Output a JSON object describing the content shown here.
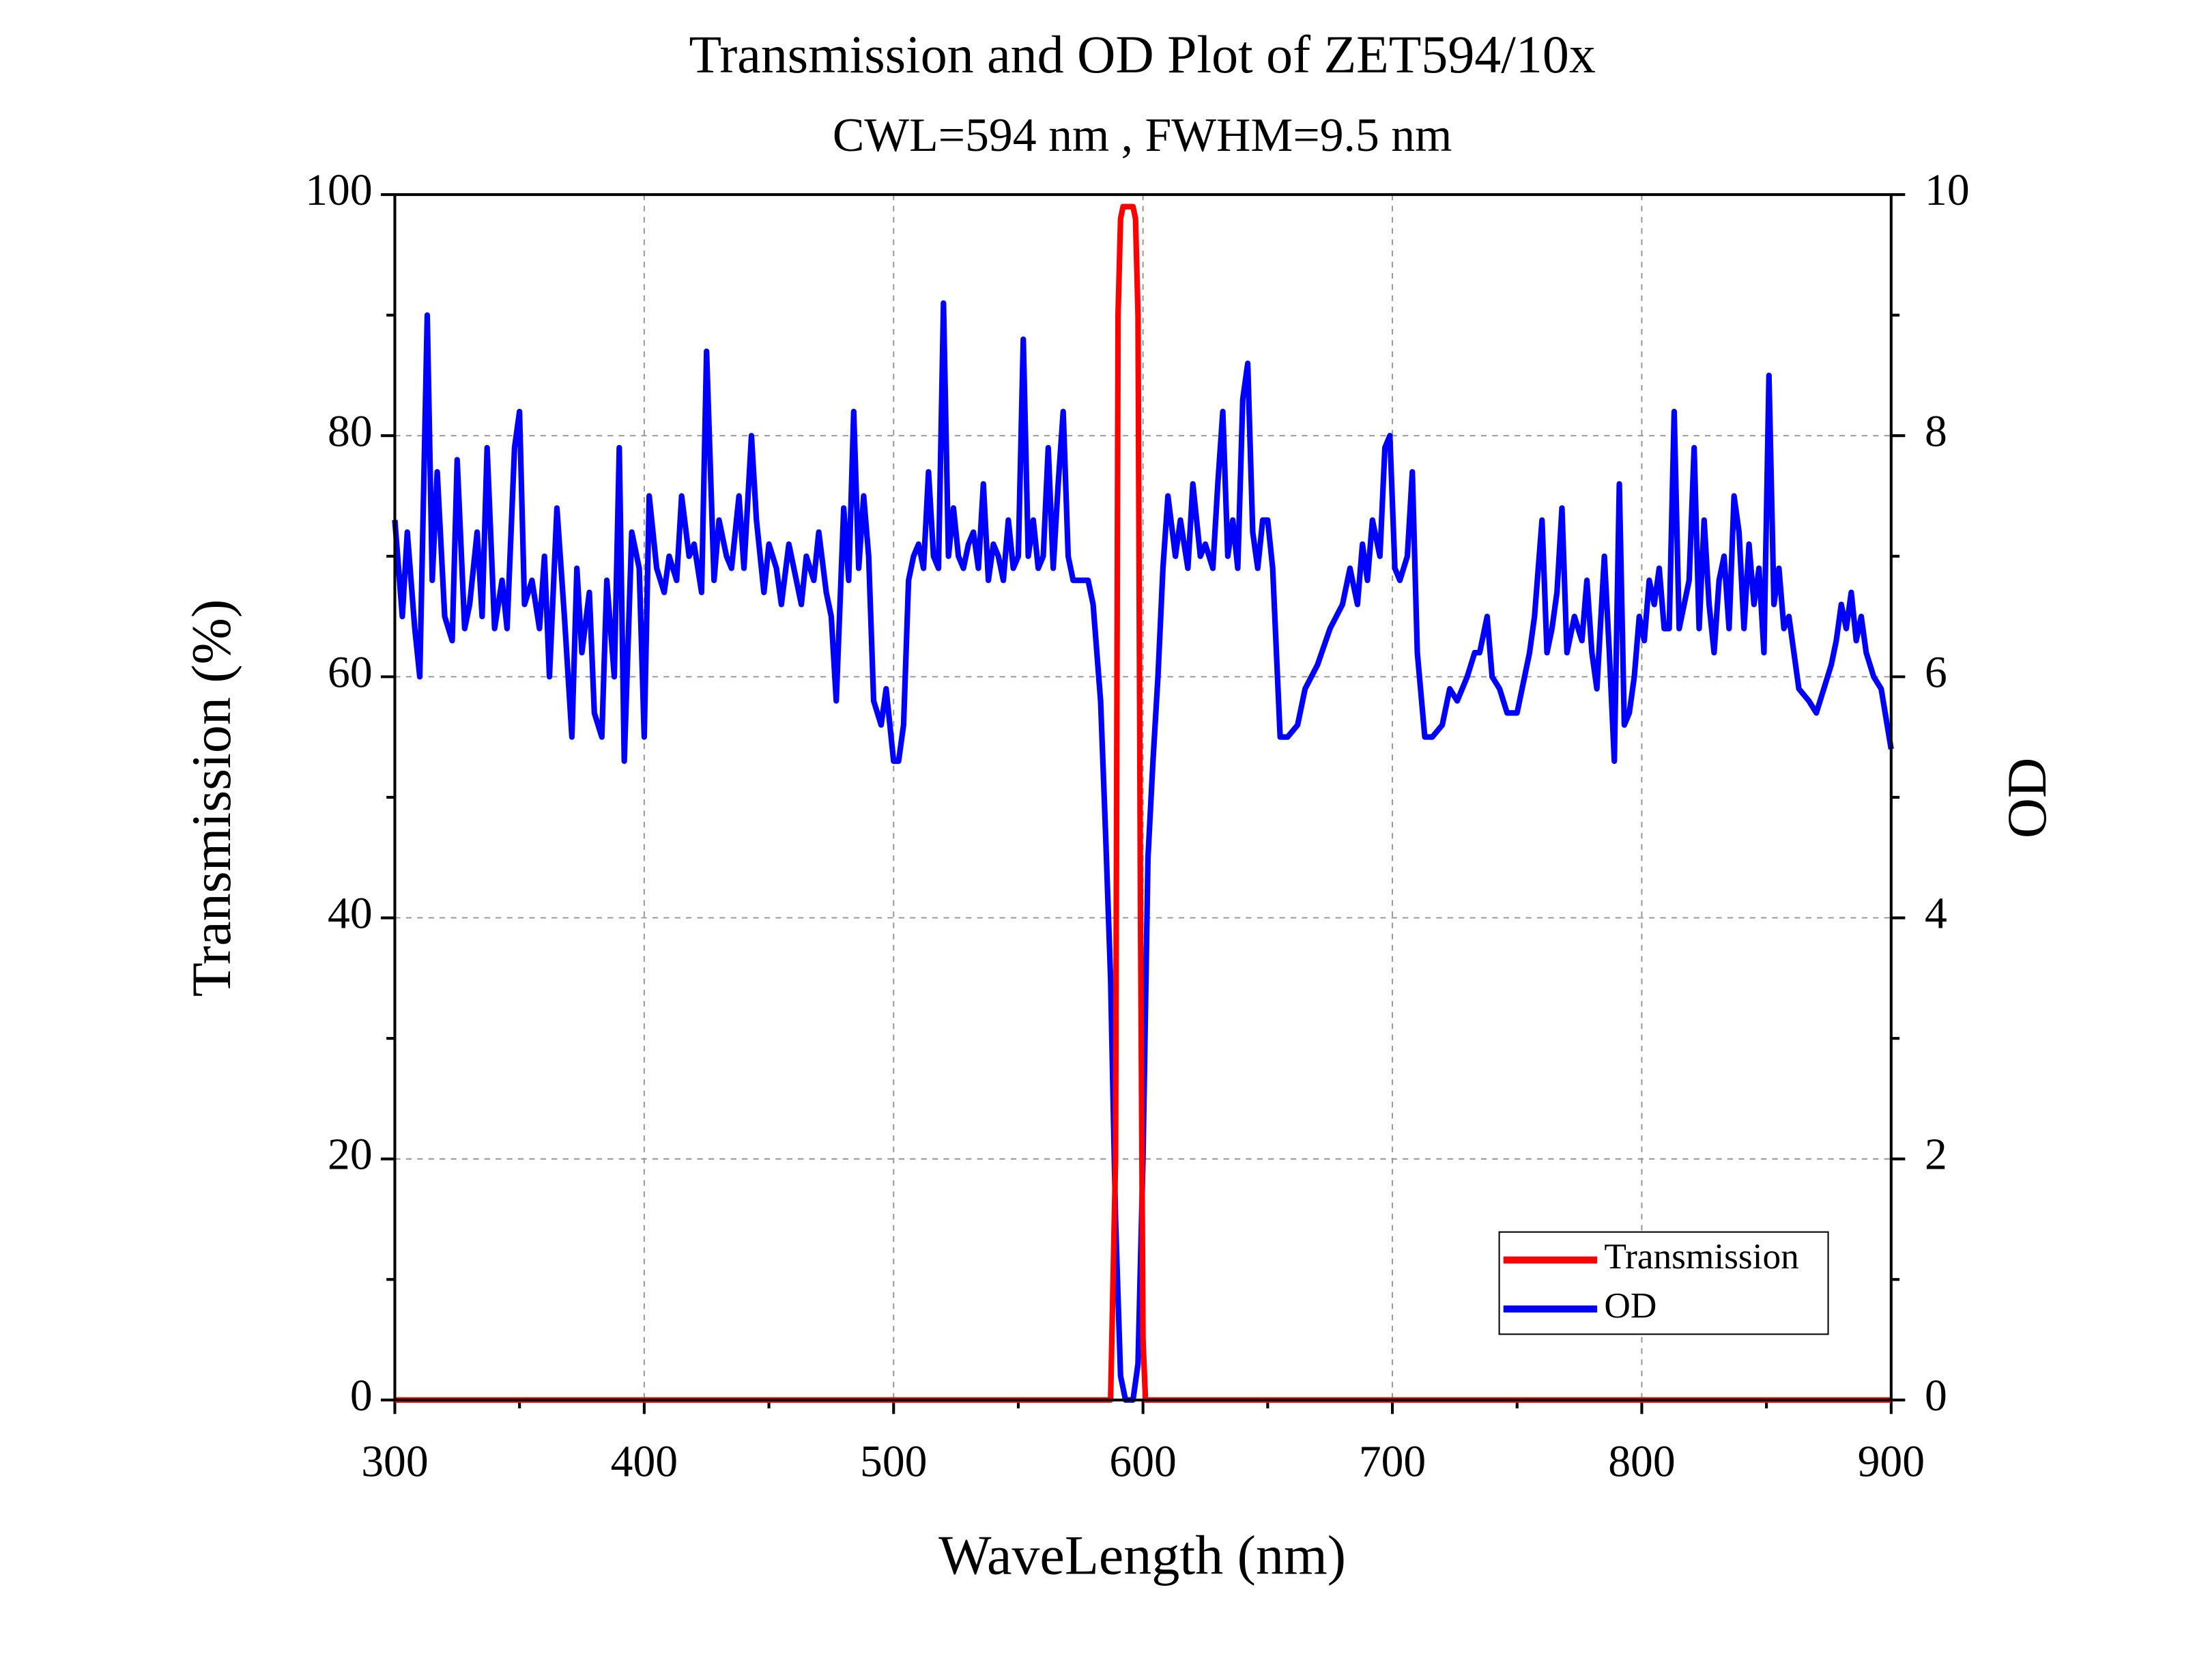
{
  "chart_data": {
    "type": "line",
    "title": "Transmission and OD Plot of ZET594/10x",
    "subtitle": "CWL=594 nm , FWHM=9.5 nm",
    "x_label": "WaveLength (nm)",
    "y_label": "Transmission (%)",
    "y2_label": "OD",
    "xlim": [
      300,
      900
    ],
    "xticks": [
      300,
      400,
      500,
      600,
      700,
      800,
      900
    ],
    "ylim": [
      0,
      100
    ],
    "yticks": [
      0,
      20,
      40,
      60,
      80,
      100
    ],
    "y2lim": [
      0,
      10
    ],
    "y2ticks": [
      0,
      2,
      4,
      6,
      8,
      10
    ],
    "grid": true,
    "legend": "lower right",
    "series": [
      {
        "name": "Transmission",
        "color": "#ff0000",
        "x": [
          300,
          587,
          589,
          590,
          591,
          592,
          594,
          596,
          597,
          598,
          599,
          600,
          601,
          900
        ],
        "values": [
          0,
          0,
          20,
          90,
          98,
          99,
          99,
          99,
          98,
          90,
          40,
          5,
          0,
          0
        ]
      },
      {
        "name": "OD",
        "color": "#0000ff",
        "axis": "y2",
        "x": [
          300,
          303,
          305,
          308,
          310,
          313,
          315,
          317,
          320,
          323,
          325,
          328,
          330,
          333,
          335,
          337,
          340,
          343,
          345,
          348,
          350,
          352,
          355,
          358,
          360,
          362,
          365,
          368,
          371,
          373,
          375,
          378,
          380,
          383,
          385,
          388,
          390,
          392,
          395,
          398,
          400,
          402,
          405,
          408,
          410,
          413,
          415,
          418,
          420,
          423,
          425,
          428,
          430,
          433,
          435,
          438,
          440,
          443,
          445,
          448,
          450,
          453,
          455,
          458,
          460,
          463,
          465,
          468,
          470,
          473,
          475,
          477,
          480,
          482,
          484,
          486,
          488,
          490,
          492,
          495,
          497,
          500,
          502,
          504,
          506,
          508,
          510,
          512,
          514,
          516,
          518,
          520,
          522,
          524,
          526,
          528,
          530,
          532,
          534,
          536,
          538,
          540,
          542,
          544,
          546,
          548,
          550,
          552,
          554,
          556,
          558,
          560,
          562,
          564,
          566,
          568,
          570,
          572,
          575,
          578,
          580,
          583,
          585,
          587,
          589,
          591,
          593,
          596,
          598,
          600,
          602,
          604,
          606,
          608,
          610,
          613,
          615,
          618,
          620,
          623,
          625,
          628,
          630,
          632,
          634,
          636,
          638,
          640,
          642,
          644,
          646,
          648,
          650,
          652,
          655,
          658,
          662,
          665,
          670,
          675,
          680,
          683,
          686,
          688,
          690,
          692,
          695,
          697,
          699,
          701,
          703,
          706,
          708,
          710,
          713,
          716,
          720,
          723,
          726,
          730,
          733,
          735,
          738,
          740,
          743,
          746,
          750,
          753,
          755,
          757,
          760,
          762,
          764,
          766,
          768,
          770,
          773,
          776,
          778,
          780,
          782,
          785,
          787,
          789,
          791,
          793,
          795,
          797,
          799,
          801,
          803,
          805,
          807,
          809,
          811,
          813,
          815,
          817,
          819,
          821,
          823,
          825,
          827,
          829,
          831,
          833,
          835,
          837,
          839,
          841,
          843,
          845,
          847,
          849,
          851,
          853,
          855,
          857,
          859,
          861,
          863,
          867,
          870,
          873,
          876,
          878,
          880,
          882,
          884,
          886,
          888,
          890,
          893,
          896,
          900
        ],
        "values": [
          7.3,
          6.5,
          7.2,
          6.4,
          6.0,
          9.0,
          6.8,
          7.7,
          6.5,
          6.3,
          7.8,
          6.4,
          6.6,
          7.2,
          6.5,
          7.9,
          6.4,
          6.8,
          6.4,
          7.9,
          8.2,
          6.6,
          6.8,
          6.4,
          7.0,
          6.0,
          7.4,
          6.5,
          5.5,
          6.9,
          6.2,
          6.7,
          5.7,
          5.5,
          6.8,
          6.0,
          7.9,
          5.3,
          7.2,
          6.9,
          5.5,
          7.5,
          6.9,
          6.7,
          7.0,
          6.8,
          7.5,
          7.0,
          7.1,
          6.7,
          8.7,
          6.8,
          7.3,
          7.0,
          6.9,
          7.5,
          6.9,
          8.0,
          7.3,
          6.7,
          7.1,
          6.9,
          6.6,
          7.1,
          6.9,
          6.6,
          7.0,
          6.8,
          7.2,
          6.7,
          6.5,
          5.8,
          7.4,
          6.8,
          8.2,
          6.9,
          7.5,
          7.0,
          5.8,
          5.6,
          5.9,
          5.3,
          5.3,
          5.6,
          6.8,
          7.0,
          7.1,
          6.9,
          7.7,
          7.0,
          6.9,
          9.1,
          7.0,
          7.4,
          7.0,
          6.9,
          7.1,
          7.2,
          6.9,
          7.6,
          6.8,
          7.1,
          7.0,
          6.8,
          7.3,
          6.9,
          7.0,
          8.8,
          7.0,
          7.3,
          6.9,
          7.0,
          7.9,
          6.9,
          7.6,
          8.2,
          7.0,
          6.8,
          6.8,
          6.8,
          6.6,
          5.8,
          4.7,
          3.5,
          1.5,
          0.2,
          0,
          0,
          0.3,
          2.0,
          4.5,
          5.3,
          6.0,
          6.9,
          7.5,
          7.0,
          7.3,
          6.9,
          7.6,
          7.0,
          7.1,
          6.9,
          7.6,
          8.2,
          7.0,
          7.3,
          6.9,
          8.3,
          8.6,
          7.2,
          6.9,
          7.3,
          7.3,
          6.9,
          5.5,
          5.5,
          5.6,
          5.9,
          6.1,
          6.4,
          6.6,
          6.9,
          6.6,
          7.1,
          6.8,
          7.3,
          7.0,
          7.9,
          8.0,
          6.9,
          6.8,
          7.0,
          7.7,
          6.2,
          5.5,
          5.5,
          5.6,
          5.9,
          5.8,
          6.0,
          6.2,
          6.2,
          6.5,
          6.0,
          5.9,
          5.7,
          5.7,
          6.0,
          6.2,
          6.5,
          7.3,
          6.2,
          6.4,
          6.7,
          7.4,
          6.2,
          6.5,
          6.3,
          6.8,
          6.2,
          5.9,
          7.0,
          6.2,
          5.3,
          7.6,
          5.6,
          5.7,
          6.0,
          6.5,
          6.3,
          6.8,
          6.6,
          6.9,
          6.4,
          6.4,
          8.2,
          6.4,
          6.6,
          6.8,
          7.9,
          6.4,
          7.3,
          6.6,
          6.2,
          6.8,
          7.0,
          6.4,
          7.5,
          7.2,
          6.4,
          7.1,
          6.6,
          6.9,
          6.2,
          8.5,
          6.6,
          6.9,
          6.4,
          6.5,
          6.2,
          5.9,
          5.8,
          5.7,
          5.9,
          6.1,
          6.3,
          6.6,
          6.4,
          6.7,
          6.3,
          6.5,
          6.2,
          6.0,
          5.9,
          5.4
        ]
      }
    ]
  }
}
